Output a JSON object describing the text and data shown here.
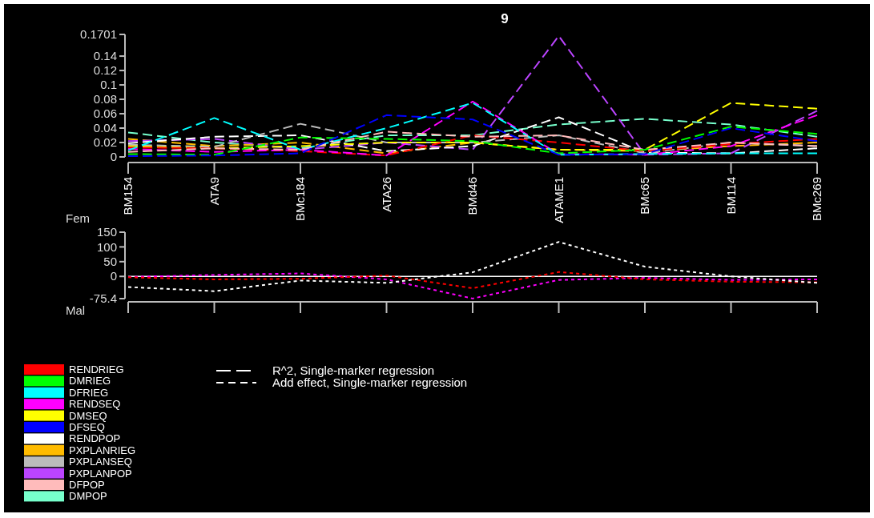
{
  "chart_data": [
    {
      "type": "line",
      "title": "9",
      "line_style": "dashed",
      "legend": "bottom left",
      "categories": [
        "BM154",
        "ATA9",
        "BMc184",
        "ATA26",
        "BMd46",
        "ATAME1",
        "BMc65",
        "BM114",
        "BMc269"
      ],
      "ylim": [
        0,
        0.1701
      ],
      "yticks": [
        0,
        0.02,
        0.04,
        0.06,
        0.08,
        0.1,
        0.12,
        0.14,
        0.1701
      ],
      "annotations": [
        "R^2, Single-marker regression",
        "Add effect, Single-marker regression"
      ],
      "series": [
        {
          "name": "RENDRIEG",
          "color": "#ff0000",
          "values": [
            0.013,
            0.012,
            0.008,
            0.002,
            0.03,
            0.02,
            0.008,
            0.018,
            0.025
          ]
        },
        {
          "name": "DMRIEG",
          "color": "#00ff00",
          "values": [
            0.004,
            0.003,
            0.027,
            0.025,
            0.022,
            0.005,
            0.01,
            0.042,
            0.032
          ]
        },
        {
          "name": "DFRIEG",
          "color": "#00ffff",
          "values": [
            0.009,
            0.054,
            0.01,
            0.04,
            0.075,
            0.003,
            0.004,
            0.005,
            0.005
          ]
        },
        {
          "name": "RENDSEQ",
          "color": "#ff00ff",
          "values": [
            0.011,
            0.007,
            0.01,
            0.002,
            0.077,
            0.004,
            0.003,
            0.015,
            0.058
          ]
        },
        {
          "name": "DMSEQ",
          "color": "#ffff00",
          "values": [
            0.015,
            0.012,
            0.015,
            0.02,
            0.02,
            0.01,
            0.01,
            0.075,
            0.067
          ]
        },
        {
          "name": "DFSEQ",
          "color": "#0000ff",
          "values": [
            0.001,
            0.002,
            0.005,
            0.058,
            0.052,
            0.003,
            0.004,
            0.04,
            0.022
          ]
        },
        {
          "name": "RENDPOP",
          "color": "#ffffff",
          "values": [
            0.019,
            0.028,
            0.03,
            0.008,
            0.015,
            0.055,
            0.006,
            0.005,
            0.012
          ]
        },
        {
          "name": "PXPLANRIEG",
          "color": "#ffbb00",
          "values": [
            0.025,
            0.015,
            0.02,
            0.005,
            0.02,
            0.01,
            0.008,
            0.015,
            0.02
          ]
        },
        {
          "name": "PXPLANSEQ",
          "color": "#bbbbbb",
          "values": [
            0.017,
            0.014,
            0.046,
            0.02,
            0.02,
            0.03,
            0.005,
            0.02,
            0.015
          ]
        },
        {
          "name": "PXPLANPOP",
          "color": "#bb44ff",
          "values": [
            0.022,
            0.025,
            0.01,
            0.02,
            0.01,
            0.168,
            0.003,
            0.005,
            0.064
          ]
        },
        {
          "name": "DFPOP",
          "color": "#ffbbbb",
          "values": [
            0.007,
            0.012,
            0.01,
            0.035,
            0.028,
            0.03,
            0.01,
            0.02,
            0.015
          ]
        },
        {
          "name": "DMPOP",
          "color": "#77ffcc",
          "values": [
            0.034,
            0.02,
            0.012,
            0.03,
            0.03,
            0.045,
            0.053,
            0.045,
            0.028
          ]
        }
      ]
    },
    {
      "type": "line",
      "line_style": "dotted",
      "categories": [
        null,
        null,
        null,
        null,
        null,
        null,
        null,
        null,
        null
      ],
      "ylim": [
        -75.4,
        150
      ],
      "yticks": [
        -75.4,
        0,
        50,
        100,
        150
      ],
      "ref_lines": [
        {
          "axis": "y",
          "value": 0,
          "color": "#ffffff"
        }
      ],
      "annotations": [
        "Fem",
        "Mal"
      ],
      "series": [
        {
          "color": "#ffffff",
          "values": [
            -36,
            -50,
            -14,
            -22,
            14,
            117,
            33,
            0,
            -22
          ]
        },
        {
          "color": "#ff0000",
          "values": [
            -3,
            -10,
            -8,
            3,
            -40,
            15,
            -10,
            -18,
            -20
          ]
        },
        {
          "color": "#ff00ff",
          "values": [
            -2,
            5,
            10,
            -10,
            -75,
            -12,
            -5,
            -12,
            -10
          ]
        }
      ]
    }
  ]
}
